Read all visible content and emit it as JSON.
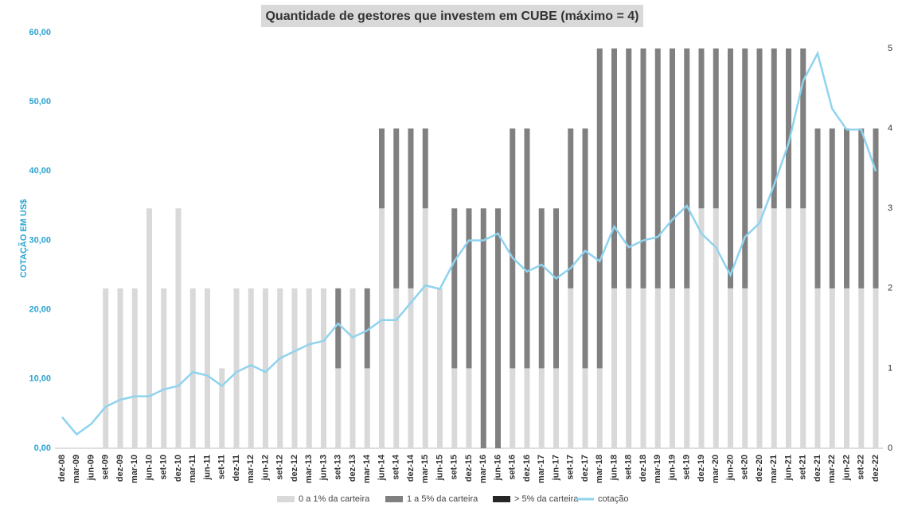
{
  "chart_data": {
    "type": "bar",
    "title": "Quantidade de gestores que investem em CUBE (máximo = 4)",
    "y_label": "COTAÇÃO EM US$",
    "categories": [
      "dez-08",
      "mar-09",
      "jun-09",
      "set-09",
      "dez-09",
      "mar-10",
      "jun-10",
      "set-10",
      "dez-10",
      "mar-11",
      "jun-11",
      "set-11",
      "dez-11",
      "mar-12",
      "jun-12",
      "set-12",
      "dez-12",
      "mar-13",
      "jun-13",
      "set-13",
      "dez-13",
      "mar-14",
      "jun-14",
      "set-14",
      "dez-14",
      "mar-15",
      "jun-15",
      "set-15",
      "dez-15",
      "mar-16",
      "jun-16",
      "set-16",
      "dez-16",
      "mar-17",
      "jun-17",
      "set-17",
      "dez-17",
      "mar-18",
      "jun-18",
      "set-18",
      "dez-18",
      "mar-19",
      "jun-19",
      "set-19",
      "dez-19",
      "mar-20",
      "jun-20",
      "set-20",
      "dez-20",
      "mar-21",
      "jun-21",
      "set-21",
      "dez-21",
      "mar-22",
      "jun-22",
      "set-22",
      "dez-22"
    ],
    "series": [
      {
        "name": "0 a 1% da carteira",
        "color": "#d9d9d9",
        "axis": "y2",
        "values": [
          0,
          0,
          0,
          2,
          2,
          2,
          3,
          2,
          3,
          2,
          2,
          1,
          2,
          2,
          2,
          2,
          2,
          2,
          2,
          1,
          2,
          1,
          3,
          2,
          2,
          3,
          2,
          1,
          1,
          0,
          0,
          1,
          1,
          1,
          1,
          2,
          1,
          1,
          2,
          2,
          2,
          2,
          2,
          2,
          3,
          3,
          2,
          2,
          3,
          3,
          3,
          3,
          2,
          2,
          2,
          2,
          2
        ]
      },
      {
        "name": "1 a 5% da carteira",
        "color": "#808080",
        "axis": "y2",
        "values": [
          0,
          0,
          0,
          0,
          0,
          0,
          0,
          0,
          0,
          0,
          0,
          0,
          0,
          0,
          0,
          0,
          0,
          0,
          0,
          1,
          0,
          1,
          1,
          2,
          2,
          1,
          0,
          2,
          2,
          3,
          3,
          3,
          3,
          2,
          2,
          2,
          3,
          4,
          3,
          3,
          3,
          3,
          3,
          3,
          2,
          2,
          3,
          3,
          2,
          2,
          2,
          2,
          2,
          2,
          2,
          2,
          2
        ]
      },
      {
        "name": "> 5% da carteira",
        "color": "#262626",
        "axis": "y2",
        "values": [
          0,
          0,
          0,
          0,
          0,
          0,
          0,
          0,
          0,
          0,
          0,
          0,
          0,
          0,
          0,
          0,
          0,
          0,
          0,
          0,
          0,
          0,
          0,
          0,
          0,
          0,
          0,
          0,
          0,
          0,
          0,
          0,
          0,
          0,
          0,
          0,
          0,
          0,
          0,
          0,
          0,
          0,
          0,
          0,
          0,
          0,
          0,
          0,
          0,
          0,
          0,
          0,
          0,
          0,
          0,
          0,
          0
        ]
      },
      {
        "name": "cotação",
        "color": "#8fd3ef",
        "type": "line",
        "values": [
          4.5,
          2,
          3.5,
          6,
          7,
          7.5,
          7.5,
          8.5,
          9,
          11,
          10.5,
          9,
          11,
          12,
          11,
          13,
          14,
          15,
          15.5,
          18,
          16,
          17,
          18.5,
          18.5,
          21,
          23.5,
          23,
          27,
          30,
          30,
          31,
          27.5,
          25.5,
          26.5,
          24.5,
          26,
          28.5,
          27,
          32,
          29,
          30,
          30.5,
          33,
          35,
          31,
          29,
          25,
          30.5,
          32.5,
          38,
          44,
          53,
          57,
          49,
          46,
          46,
          40
        ]
      }
    ],
    "ylim": [
      0,
      60
    ],
    "yticks": [
      {
        "value": 0,
        "label": "0,00"
      },
      {
        "value": 10,
        "label": "10,00"
      },
      {
        "value": 20,
        "label": "20,00"
      },
      {
        "value": 30,
        "label": "30,00"
      },
      {
        "value": 40,
        "label": "40,00"
      },
      {
        "value": 50,
        "label": "50,00"
      },
      {
        "value": 60,
        "label": "60,00"
      }
    ],
    "y2lim": [
      0,
      5
    ],
    "y2ticks": [
      0,
      1,
      2,
      3,
      4,
      5
    ]
  }
}
